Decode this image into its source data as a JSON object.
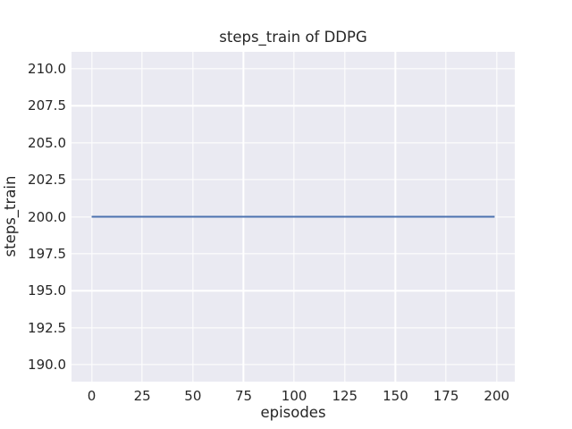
{
  "chart_data": {
    "type": "line",
    "title": "steps_train of DDPG",
    "xlabel": "episodes",
    "ylabel": "steps_train",
    "xlim": [
      -9.95,
      208.95
    ],
    "ylim": [
      188.85,
      211.15
    ],
    "xticks": [
      0,
      25,
      50,
      75,
      100,
      125,
      150,
      175,
      200
    ],
    "xtick_labels": [
      "0",
      "25",
      "50",
      "75",
      "100",
      "125",
      "150",
      "175",
      "200"
    ],
    "yticks": [
      190.0,
      192.5,
      195.0,
      197.5,
      200.0,
      202.5,
      205.0,
      207.5,
      210.0
    ],
    "ytick_labels": [
      "190.0",
      "192.5",
      "195.0",
      "197.5",
      "200.0",
      "202.5",
      "205.0",
      "207.5",
      "210.0"
    ],
    "grid": true,
    "legend": "none",
    "series": [
      {
        "name": "steps_train",
        "color": "#4c72b0",
        "linewidth": 2.1,
        "x": [
          0,
          199
        ],
        "y": [
          200,
          200
        ]
      }
    ],
    "colors": {
      "plot_background": "#eaeaf2",
      "grid": "#ffffff",
      "figure_background": "#ffffff",
      "text": "#262626"
    }
  }
}
